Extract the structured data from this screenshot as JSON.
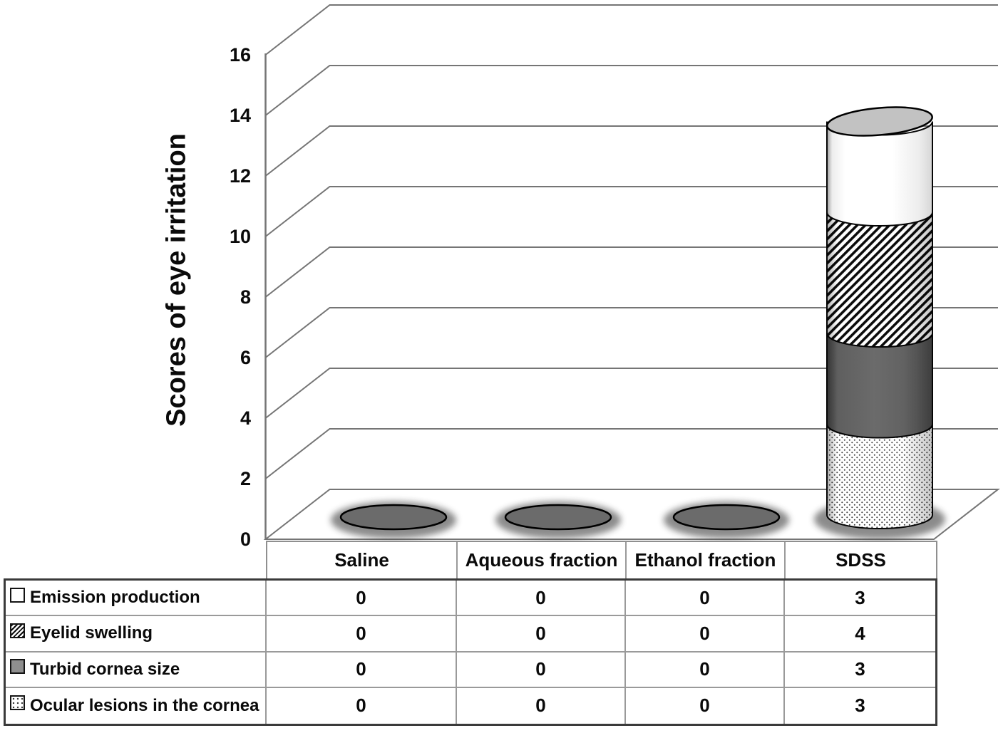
{
  "chart_data": {
    "type": "bar",
    "subtype": "3d-stacked-cylinder",
    "title": "",
    "xlabel": "",
    "ylabel": "Scores of eye irritation",
    "categories": [
      "Saline",
      "Aqueous fraction",
      "Ethanol fraction",
      "SDSS"
    ],
    "series": [
      {
        "name": "Emission production",
        "swatch": "plain-white",
        "stack_position": 4,
        "values": [
          0,
          0,
          0,
          3
        ]
      },
      {
        "name": "Eyelid swelling",
        "swatch": "diagonal-hatch",
        "stack_position": 3,
        "values": [
          0,
          0,
          0,
          4
        ]
      },
      {
        "name": "Turbid cornea size",
        "swatch": "solid-gray",
        "stack_position": 2,
        "values": [
          0,
          0,
          0,
          3
        ]
      },
      {
        "name": "Ocular lesions in the cornea",
        "swatch": "dotted",
        "stack_position": 1,
        "values": [
          0,
          0,
          0,
          3
        ]
      }
    ],
    "stack_totals": [
      0,
      0,
      0,
      13
    ],
    "y_axis": {
      "min": 0,
      "max": 16,
      "step": 2,
      "ticks": [
        0,
        2,
        4,
        6,
        8,
        10,
        12,
        14,
        16
      ]
    },
    "grid": true,
    "legend_position": "table-rows-left",
    "colors": {
      "grid_line": "#757575",
      "zero_marker": "#6b6b6b",
      "cap_gray": "#c2c2c2",
      "solid_gray": "#636363",
      "text": "#0a0a0a",
      "background": "#ffffff"
    }
  }
}
